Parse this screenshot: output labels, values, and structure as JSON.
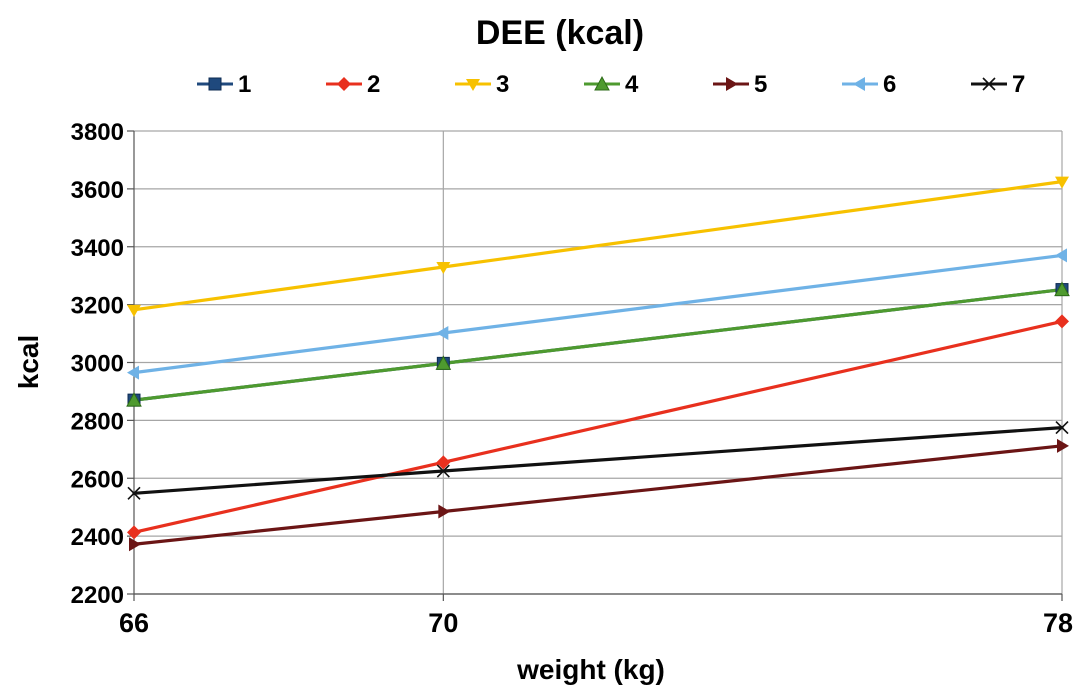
{
  "chart_data": {
    "type": "line",
    "title": "DEE (kcal)",
    "xlabel": "weight (kg)",
    "ylabel": "kcal",
    "x": [
      66,
      70,
      78
    ],
    "x_tick_labels": [
      "66",
      "70",
      "78"
    ],
    "ylim": [
      2200,
      3800
    ],
    "y_ticks": [
      2200,
      2400,
      2600,
      2800,
      3000,
      3200,
      3400,
      3600,
      3800
    ],
    "grid": "horizontal",
    "legend_position": "top",
    "series": [
      {
        "name": "1",
        "color": "#1f497d",
        "marker": "square",
        "values": [
          2870,
          2997,
          3252
        ]
      },
      {
        "name": "2",
        "color": "#e8301e",
        "marker": "diamond",
        "values": [
          2413,
          2655,
          3142
        ]
      },
      {
        "name": "3",
        "color": "#f7c100",
        "marker": "triangle-down",
        "values": [
          3182,
          3330,
          3625
        ]
      },
      {
        "name": "4",
        "color": "#4e9a2f",
        "marker": "triangle-up",
        "values": [
          2870,
          2997,
          3252
        ]
      },
      {
        "name": "5",
        "color": "#6b1515",
        "marker": "triangle-right",
        "values": [
          2372,
          2485,
          2712
        ]
      },
      {
        "name": "6",
        "color": "#6fb2e6",
        "marker": "triangle-left",
        "values": [
          2965,
          3102,
          3370
        ]
      },
      {
        "name": "7",
        "color": "#111111",
        "marker": "bowtie",
        "values": [
          2548,
          2625,
          2775
        ]
      }
    ]
  }
}
